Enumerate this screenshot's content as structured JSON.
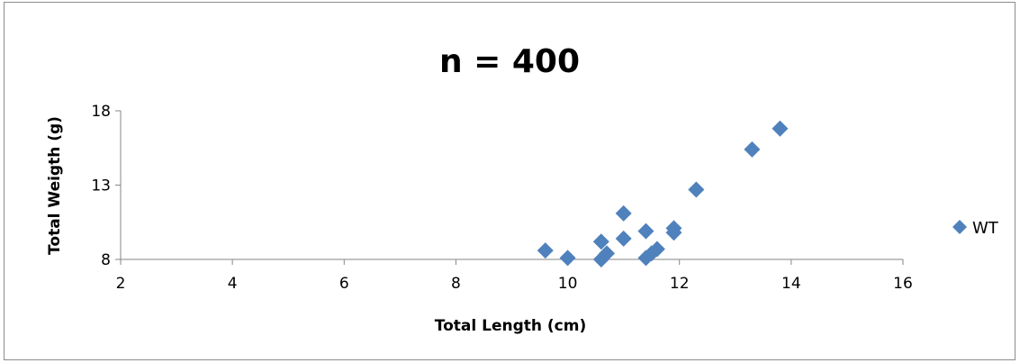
{
  "chart_data": {
    "type": "scatter",
    "title": "n = 400",
    "xlabel": "Total Length (cm)",
    "ylabel": "Total Weigth (g)",
    "xlim": [
      2,
      16
    ],
    "ylim": [
      8,
      18
    ],
    "x_ticks": [
      2,
      4,
      6,
      8,
      10,
      12,
      14,
      16
    ],
    "y_ticks": [
      8,
      13,
      18
    ],
    "grid": false,
    "legend_position": "right",
    "series": [
      {
        "name": "WT",
        "color": "#4f81bd",
        "marker": "diamond",
        "points": [
          {
            "x": 9.6,
            "y": 8.6
          },
          {
            "x": 10.0,
            "y": 8.1
          },
          {
            "x": 10.6,
            "y": 8.0
          },
          {
            "x": 10.6,
            "y": 9.2
          },
          {
            "x": 10.7,
            "y": 8.4
          },
          {
            "x": 11.0,
            "y": 9.4
          },
          {
            "x": 11.0,
            "y": 11.1
          },
          {
            "x": 11.4,
            "y": 8.1
          },
          {
            "x": 11.4,
            "y": 9.9
          },
          {
            "x": 11.5,
            "y": 8.4
          },
          {
            "x": 11.6,
            "y": 8.7
          },
          {
            "x": 11.9,
            "y": 9.8
          },
          {
            "x": 11.9,
            "y": 10.1
          },
          {
            "x": 12.3,
            "y": 12.7
          },
          {
            "x": 13.3,
            "y": 15.4
          },
          {
            "x": 13.8,
            "y": 16.8
          }
        ]
      }
    ]
  }
}
